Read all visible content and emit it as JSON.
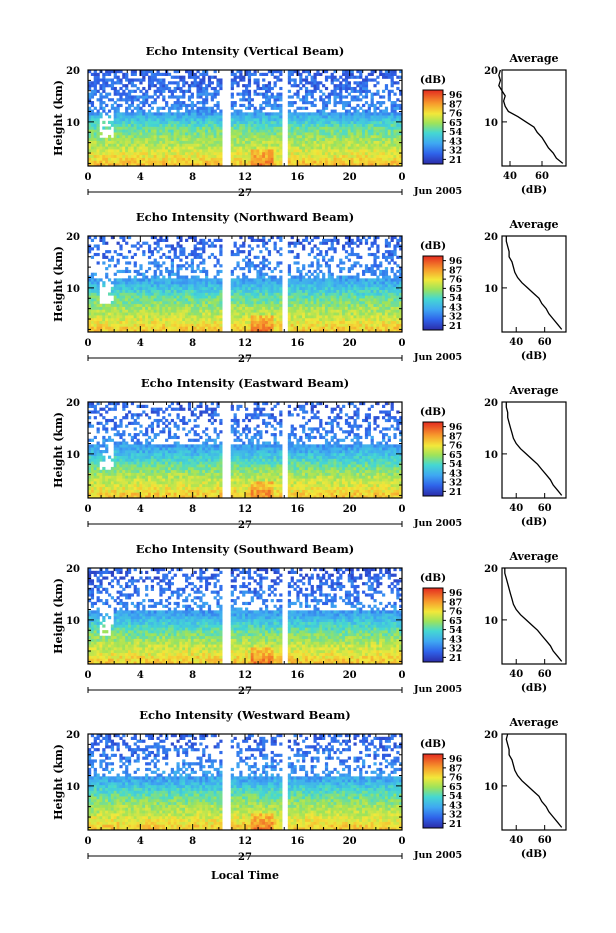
{
  "figure": {
    "date_label": "Jun 2005",
    "day_label": "27",
    "xlabel": "Local Time",
    "ylabel": "Height (km)",
    "avg_title": "Average",
    "avg_xlabel": "(dB)",
    "cbar_unit": "(dB)",
    "colorbar_ticks": [
      "96",
      "87",
      "76",
      "65",
      "54",
      "43",
      "32",
      "21"
    ]
  },
  "chart_data": [
    {
      "type": "heatmap",
      "title": "Echo Intensity (Vertical Beam)",
      "xlabel": "",
      "ylabel": "Height (km)",
      "x_ticks": [
        "0",
        "4",
        "8",
        "12",
        "16",
        "20",
        "0"
      ],
      "y_ticks": [
        "20",
        "10"
      ],
      "xlim": [
        0,
        24
      ],
      "ylim": [
        1.5,
        20
      ],
      "colorbar": {
        "label": "(dB)",
        "ticks": [
          96,
          87,
          76,
          65,
          54,
          43,
          32,
          21
        ],
        "range": [
          21,
          96
        ]
      },
      "data_gaps_hours": [
        [
          10.2,
          10.8
        ],
        [
          14.8,
          15.3
        ]
      ],
      "profile": {
        "title": "Average",
        "xlabel": "(dB)",
        "x_ticks": [
          40,
          60
        ],
        "xlim": [
          35,
          75
        ],
        "heights_km": [
          20,
          19,
          18,
          17,
          16,
          15,
          14,
          13,
          12,
          11,
          10,
          9,
          8,
          7,
          6,
          5,
          4,
          3,
          2
        ],
        "values_db": [
          34,
          33,
          34,
          33,
          35,
          37,
          36,
          37,
          39,
          45,
          50,
          55,
          57,
          60,
          62,
          64,
          67,
          69,
          73
        ]
      }
    },
    {
      "type": "heatmap",
      "title": "Echo Intensity (Northward Beam)",
      "xlabel": "",
      "ylabel": "Height (km)",
      "x_ticks": [
        "0",
        "4",
        "8",
        "12",
        "16",
        "20",
        "0"
      ],
      "y_ticks": [
        "20",
        "10"
      ],
      "xlim": [
        0,
        24
      ],
      "ylim": [
        1.5,
        20
      ],
      "colorbar": {
        "label": "(dB)",
        "ticks": [
          96,
          87,
          76,
          65,
          54,
          43,
          32,
          21
        ],
        "range": [
          21,
          96
        ]
      },
      "data_gaps_hours": [
        [
          10.2,
          10.8
        ],
        [
          14.8,
          15.3
        ]
      ],
      "profile": {
        "title": "Average",
        "xlabel": "(dB)",
        "x_ticks": [
          40,
          60
        ],
        "xlim": [
          30,
          75
        ],
        "heights_km": [
          20,
          19,
          18,
          17,
          16,
          15,
          14,
          13,
          12,
          11,
          10,
          9,
          8,
          7,
          6,
          5,
          4,
          3,
          2
        ],
        "values_db": [
          33,
          33,
          34,
          35,
          35,
          37,
          38,
          39,
          41,
          44,
          48,
          52,
          56,
          58,
          61,
          63,
          66,
          69,
          72
        ]
      }
    },
    {
      "type": "heatmap",
      "title": "Echo Intensity (Eastward Beam)",
      "xlabel": "",
      "ylabel": "Height (km)",
      "x_ticks": [
        "0",
        "4",
        "8",
        "12",
        "16",
        "20",
        "0"
      ],
      "y_ticks": [
        "20",
        "10"
      ],
      "xlim": [
        0,
        24
      ],
      "ylim": [
        1.5,
        20
      ],
      "colorbar": {
        "label": "(dB)",
        "ticks": [
          96,
          87,
          76,
          65,
          54,
          43,
          32,
          21
        ],
        "range": [
          21,
          96
        ]
      },
      "data_gaps_hours": [
        [
          10.2,
          10.8
        ],
        [
          14.8,
          15.3
        ]
      ],
      "profile": {
        "title": "Average",
        "xlabel": "(dB)",
        "x_ticks": [
          40,
          60
        ],
        "xlim": [
          30,
          75
        ],
        "heights_km": [
          20,
          19,
          18,
          17,
          16,
          15,
          14,
          13,
          12,
          11,
          10,
          9,
          8,
          7,
          6,
          5,
          4,
          3,
          2
        ],
        "values_db": [
          33,
          33,
          34,
          34,
          35,
          36,
          37,
          38,
          40,
          43,
          47,
          51,
          55,
          58,
          61,
          64,
          66,
          69,
          72
        ]
      }
    },
    {
      "type": "heatmap",
      "title": "Echo Intensity (Southward Beam)",
      "xlabel": "",
      "ylabel": "Height (km)",
      "x_ticks": [
        "0",
        "4",
        "8",
        "12",
        "16",
        "20",
        "0"
      ],
      "y_ticks": [
        "20",
        "10"
      ],
      "xlim": [
        0,
        24
      ],
      "ylim": [
        1.5,
        20
      ],
      "colorbar": {
        "label": "(dB)",
        "ticks": [
          96,
          87,
          76,
          65,
          54,
          43,
          32,
          21
        ],
        "range": [
          21,
          96
        ]
      },
      "data_gaps_hours": [
        [
          10.2,
          10.8
        ],
        [
          14.8,
          15.3
        ]
      ],
      "profile": {
        "title": "Average",
        "xlabel": "(dB)",
        "x_ticks": [
          40,
          60
        ],
        "xlim": [
          30,
          75
        ],
        "heights_km": [
          20,
          19,
          18,
          17,
          16,
          15,
          14,
          13,
          12,
          11,
          10,
          9,
          8,
          7,
          6,
          5,
          4,
          3,
          2
        ],
        "values_db": [
          32,
          32,
          33,
          34,
          35,
          36,
          37,
          38,
          40,
          43,
          47,
          51,
          55,
          58,
          61,
          64,
          66,
          69,
          72
        ]
      }
    },
    {
      "type": "heatmap",
      "title": "Echo Intensity (Westward Beam)",
      "xlabel": "Local Time",
      "ylabel": "Height (km)",
      "x_ticks": [
        "0",
        "4",
        "8",
        "12",
        "16",
        "20",
        "0"
      ],
      "y_ticks": [
        "20",
        "10"
      ],
      "xlim": [
        0,
        24
      ],
      "ylim": [
        1.5,
        20
      ],
      "colorbar": {
        "label": "(dB)",
        "ticks": [
          96,
          87,
          76,
          65,
          54,
          43,
          32,
          21
        ],
        "range": [
          21,
          96
        ]
      },
      "data_gaps_hours": [
        [
          10.2,
          10.8
        ],
        [
          14.8,
          15.3
        ]
      ],
      "profile": {
        "title": "Average",
        "xlabel": "(dB)",
        "x_ticks": [
          40,
          60
        ],
        "xlim": [
          30,
          75
        ],
        "heights_km": [
          20,
          19,
          18,
          17,
          16,
          15,
          14,
          13,
          12,
          11,
          10,
          9,
          8,
          7,
          6,
          5,
          4,
          3,
          2
        ],
        "values_db": [
          34,
          33,
          34,
          35,
          35,
          37,
          38,
          39,
          41,
          44,
          48,
          52,
          56,
          58,
          61,
          63,
          66,
          69,
          72
        ]
      }
    }
  ]
}
